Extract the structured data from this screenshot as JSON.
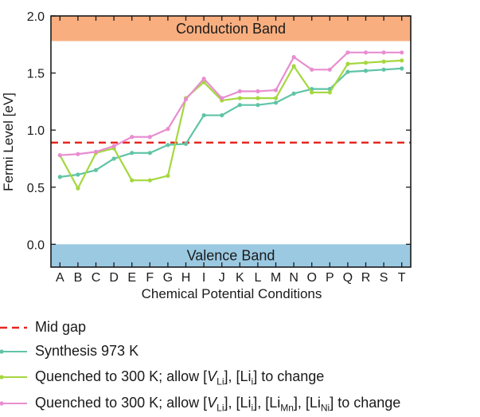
{
  "chart_data": {
    "type": "line",
    "ylabel": "Fermi Level [eV]",
    "xlabel": "Chemical Potential Conditions",
    "ylim": [
      -0.2,
      2.0
    ],
    "yticks": [
      "0.0",
      "0.5",
      "1.0",
      "1.5",
      "2.0"
    ],
    "ytick_values": [
      0.0,
      0.5,
      1.0,
      1.5,
      2.0
    ],
    "categories": [
      "A",
      "B",
      "C",
      "D",
      "E",
      "F",
      "G",
      "H",
      "I",
      "J",
      "K",
      "L",
      "M",
      "N",
      "O",
      "P",
      "Q",
      "R",
      "S",
      "T"
    ],
    "bands": [
      {
        "name": "Conduction Band",
        "from": 1.78,
        "to": 2.0,
        "color": "#f9ae7f"
      },
      {
        "name": "Valence Band",
        "from": -0.2,
        "to": 0.0,
        "color": "#9bc9e2"
      }
    ],
    "midgap": {
      "name": "Mid gap",
      "value": 0.89,
      "color": "#e5261f"
    },
    "series": [
      {
        "name": "Synthesis 973 K",
        "color": "#5fc4a6",
        "values": [
          0.59,
          0.61,
          0.65,
          0.75,
          0.8,
          0.8,
          0.87,
          0.88,
          1.13,
          1.13,
          1.22,
          1.22,
          1.24,
          1.32,
          1.36,
          1.36,
          1.51,
          1.52,
          1.53,
          1.54
        ]
      },
      {
        "name": "Quenched to 300 K; allow [VLi], [Lii] to change",
        "color": "#a5d73f",
        "values": [
          0.78,
          0.49,
          0.8,
          0.84,
          0.56,
          0.56,
          0.6,
          1.28,
          1.42,
          1.26,
          1.28,
          1.28,
          1.28,
          1.56,
          1.33,
          1.33,
          1.58,
          1.59,
          1.6,
          1.61
        ]
      },
      {
        "name": "Quenched to 300 K; allow [VLi], [Lii], [LiMn], [LiNi] to change",
        "color": "#e88ed0",
        "values": [
          0.78,
          0.79,
          0.81,
          0.86,
          0.94,
          0.94,
          1.01,
          1.27,
          1.45,
          1.28,
          1.34,
          1.34,
          1.35,
          1.64,
          1.53,
          1.53,
          1.68,
          1.68,
          1.68,
          1.68
        ]
      }
    ]
  },
  "legend": {
    "midgap_label": "Mid gap",
    "s1_label": "Synthesis 973 K",
    "s2_prefix": "Quenched to 300 K; allow [",
    "s2_v": "V",
    "s2_sub_li": "Li",
    "s2_mid": "], [Li",
    "s2_sub_i": "i",
    "s2_suffix": "] to change",
    "s3_prefix": "Quenched to 300 K; allow [",
    "s3_v": "V",
    "s3_sub_li": "Li",
    "s3_mid1": "], [Li",
    "s3_sub_i": "i",
    "s3_mid2": "], [Li",
    "s3_sub_mn": "Mn",
    "s3_mid3": "], [Li",
    "s3_sub_ni": "Ni",
    "s3_suffix": "] to change"
  }
}
